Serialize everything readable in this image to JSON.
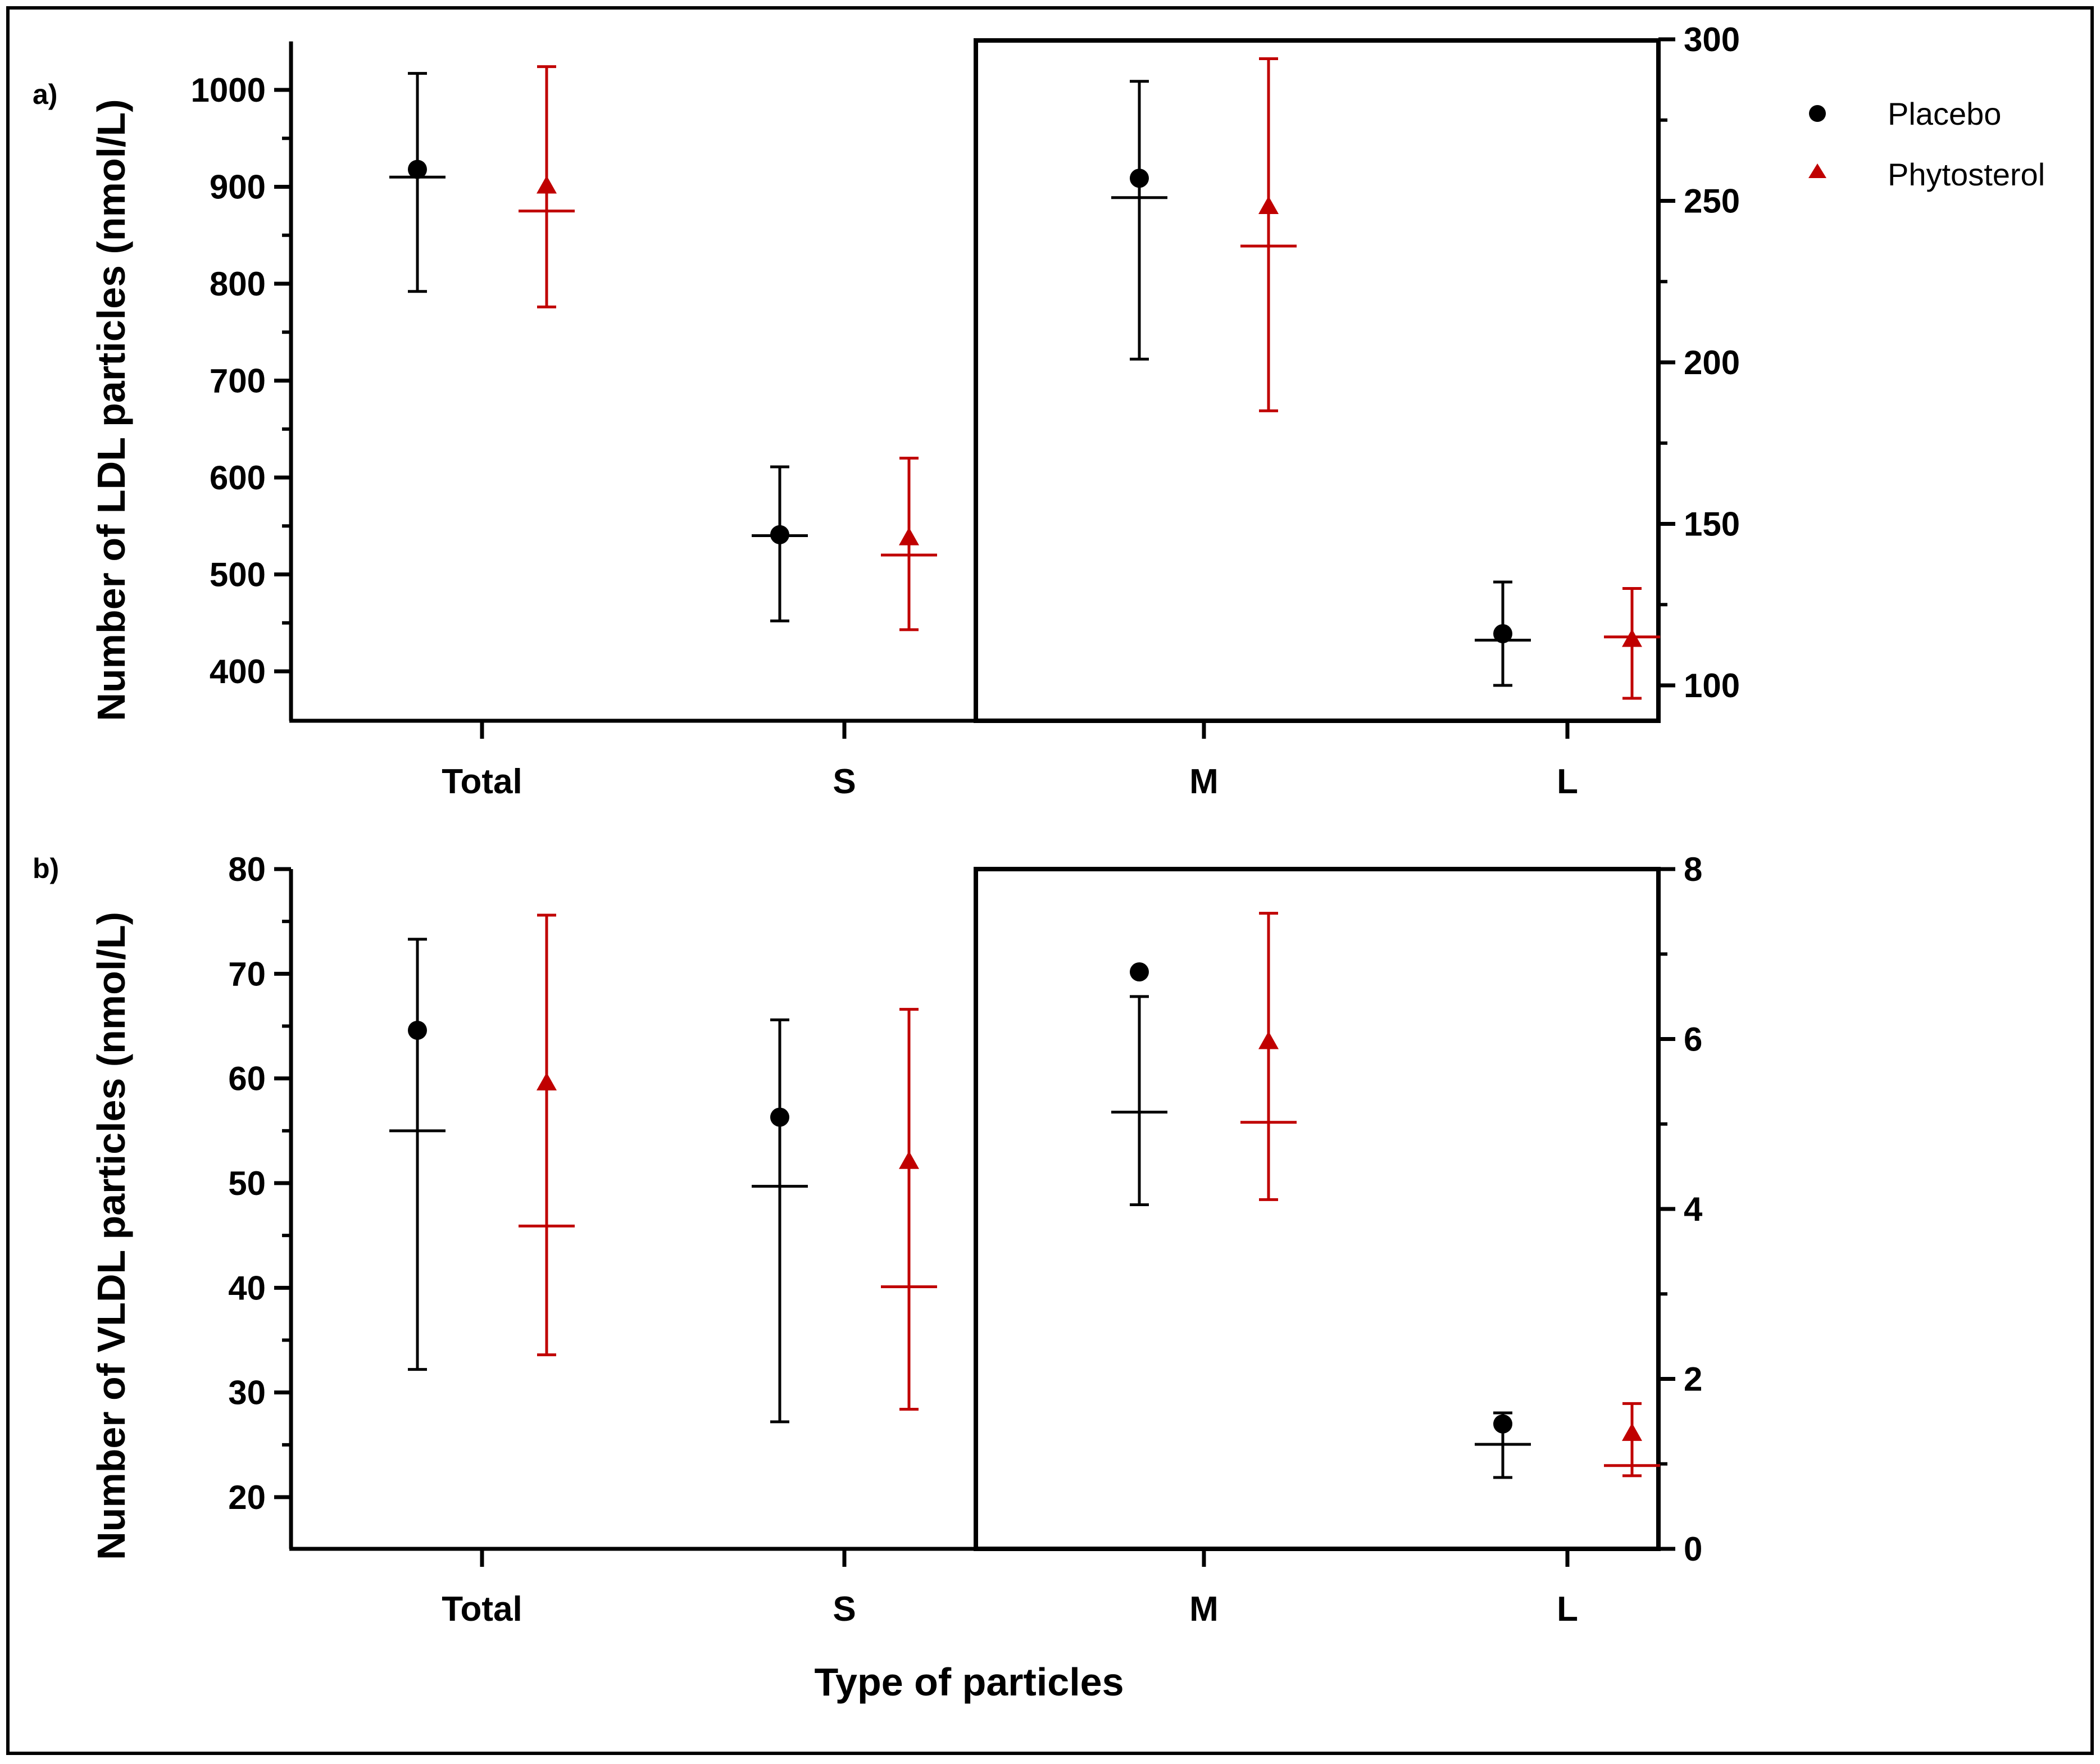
{
  "chart_data": [
    {
      "type": "scatter",
      "panel_label": "a)",
      "ylabel": "Number of LDL particles (nmol/L)",
      "categories": [
        "Total",
        "S",
        "M",
        "L"
      ],
      "left_axis": {
        "ylim": [
          350,
          1050
        ],
        "ticks": [
          400,
          500,
          600,
          700,
          800,
          900,
          1000
        ],
        "applies_to": [
          "Total",
          "S"
        ]
      },
      "right_axis": {
        "ylim": [
          90,
          300
        ],
        "ticks": [
          100,
          150,
          200,
          250,
          300
        ],
        "applies_to": [
          "M",
          "L"
        ]
      },
      "series": [
        {
          "name": "Placebo",
          "color": "#000000",
          "marker": "circle",
          "mean": [
            918,
            541,
            257,
            116
          ],
          "median": [
            910,
            540,
            251,
            114
          ],
          "lower": [
            792,
            452,
            201,
            100
          ],
          "upper": [
            1017,
            611,
            287,
            132
          ]
        },
        {
          "name": "Phytosterol",
          "color": "#c00000",
          "marker": "triangle",
          "mean": [
            900,
            537,
            248,
            114
          ],
          "median": [
            875,
            520,
            236,
            115
          ],
          "lower": [
            776,
            443,
            185,
            96
          ],
          "upper": [
            1024,
            620,
            294,
            130
          ]
        }
      ]
    },
    {
      "type": "scatter",
      "panel_label": "b)",
      "ylabel": "Number of VLDL particles (nmol/L)",
      "xlabel": "Type of particles",
      "categories": [
        "Total",
        "S",
        "M",
        "L"
      ],
      "left_axis": {
        "ylim": [
          15,
          80
        ],
        "ticks": [
          20,
          30,
          40,
          50,
          60,
          70,
          80
        ],
        "applies_to": [
          "Total",
          "S"
        ]
      },
      "right_axis": {
        "ylim": [
          0,
          8
        ],
        "ticks": [
          0,
          2,
          4,
          6,
          8
        ],
        "applies_to": [
          "M",
          "L"
        ]
      },
      "series": [
        {
          "name": "Placebo",
          "color": "#000000",
          "marker": "circle",
          "mean": [
            64.6,
            56.3,
            6.79,
            1.47
          ],
          "median": [
            55.0,
            49.7,
            5.14,
            1.23
          ],
          "lower": [
            32.2,
            27.2,
            4.05,
            0.84
          ],
          "upper": [
            73.3,
            65.6,
            6.5,
            1.6
          ]
        },
        {
          "name": "Phytosterol",
          "color": "#c00000",
          "marker": "triangle",
          "mean": [
            59.5,
            52.0,
            5.96,
            1.35
          ],
          "median": [
            45.9,
            40.1,
            5.02,
            0.98
          ],
          "lower": [
            33.6,
            28.4,
            4.11,
            0.86
          ],
          "upper": [
            75.6,
            66.6,
            7.48,
            1.71
          ]
        }
      ]
    }
  ],
  "legend": {
    "placebo": "Placebo",
    "phytosterol": "Phytosterol",
    "placebo_color": "#000000",
    "phytosterol_color": "#c00000"
  }
}
